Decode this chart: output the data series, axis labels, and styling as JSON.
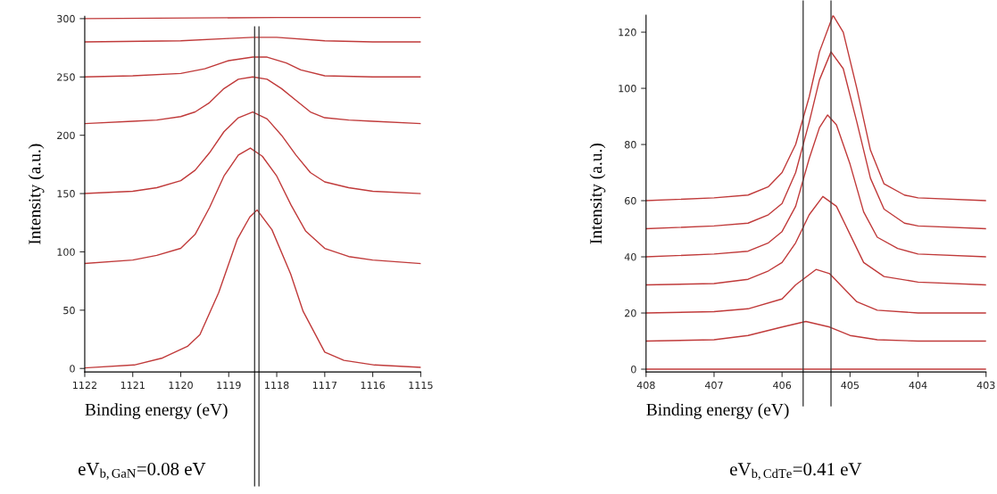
{
  "chart_data": [
    {
      "type": "line",
      "xlabel": "Binding energy (eV)",
      "ylabel": "Intensity (a.u.)",
      "xlim": [
        1122,
        1115
      ],
      "xticks": [
        1122,
        1121,
        1120,
        1119,
        1118,
        1117,
        1116,
        1115
      ],
      "ylim": [
        -3,
        302
      ],
      "yticks": [
        0,
        50,
        100,
        150,
        200,
        250,
        300
      ],
      "annotations": [
        "eV$_{b,GaN}$=0.08 eV"
      ],
      "ref_lines": [
        {
          "axis": "x",
          "value": 1118.46,
          "color": "#404040"
        },
        {
          "axis": "x",
          "value": 1118.37,
          "color": "#404040"
        }
      ],
      "series": [
        {
          "color": "#c03a3a",
          "x": [
            1122,
            1120.97,
            1120.38,
            1119.86,
            1119.6,
            1119.21,
            1118.82,
            1118.56,
            1118.41,
            1118.1,
            1117.71,
            1117.45,
            1117.0,
            1116.6,
            1115.96,
            1115
          ],
          "values": [
            0.5,
            3,
            9,
            19,
            29,
            65,
            111,
            130,
            136,
            119,
            81,
            49,
            14,
            7,
            3,
            1
          ]
        },
        {
          "color": "#c03a3a",
          "x": [
            1122,
            1121,
            1120.5,
            1120,
            1119.7,
            1119.4,
            1119.1,
            1118.8,
            1118.55,
            1118.3,
            1118,
            1117.7,
            1117.4,
            1117,
            1116.5,
            1116,
            1115
          ],
          "values": [
            90,
            93,
            97,
            103,
            115,
            138,
            165,
            183,
            189,
            182,
            165,
            140,
            118,
            103,
            96,
            93,
            90
          ]
        },
        {
          "color": "#c03a3a",
          "x": [
            1122,
            1121,
            1120.5,
            1120,
            1119.7,
            1119.4,
            1119.1,
            1118.8,
            1118.5,
            1118.2,
            1117.9,
            1117.6,
            1117.3,
            1117,
            1116.5,
            1116,
            1115
          ],
          "values": [
            150,
            152,
            155,
            161,
            170,
            185,
            203,
            215,
            220,
            214,
            200,
            183,
            168,
            160,
            155,
            152,
            150
          ]
        },
        {
          "color": "#c03a3a",
          "x": [
            1122,
            1121,
            1120.5,
            1120,
            1119.7,
            1119.4,
            1119.1,
            1118.8,
            1118.5,
            1118.2,
            1117.9,
            1117.6,
            1117.3,
            1117,
            1116.5,
            1116,
            1115
          ],
          "values": [
            210,
            212,
            213,
            216,
            220,
            228,
            240,
            248,
            250,
            248,
            240,
            230,
            220,
            215,
            213,
            212,
            210
          ]
        },
        {
          "color": "#c03a3a",
          "x": [
            1122,
            1121,
            1120,
            1119.5,
            1119,
            1118.5,
            1118.2,
            1117.8,
            1117.5,
            1117,
            1116,
            1115
          ],
          "values": [
            250,
            251,
            253,
            257,
            264,
            267,
            267,
            262,
            256,
            251,
            250,
            250
          ]
        },
        {
          "color": "#c03a3a",
          "x": [
            1122,
            1120,
            1119,
            1118.5,
            1118,
            1117,
            1116,
            1115
          ],
          "values": [
            280,
            281,
            283,
            284,
            284,
            281,
            280,
            280
          ]
        },
        {
          "color": "#c03a3a",
          "x": [
            1122,
            1118,
            1115
          ],
          "values": [
            300,
            301,
            301
          ]
        }
      ]
    },
    {
      "type": "line",
      "xlabel": "Binding energy (eV)",
      "ylabel": "Intensity (a.u.)",
      "xlim": [
        408,
        403
      ],
      "xticks": [
        408,
        407,
        406,
        405,
        404,
        403
      ],
      "ylim": [
        -1,
        126
      ],
      "yticks": [
        0,
        20,
        40,
        60,
        80,
        100,
        120
      ],
      "annotations": [
        "eV$_{b,CdTe}$=0.41 eV"
      ],
      "ref_lines": [
        {
          "axis": "x",
          "value": 405.69,
          "color": "#404040"
        },
        {
          "axis": "x",
          "value": 405.28,
          "color": "#404040"
        }
      ],
      "series": [
        {
          "color": "#c03a3a",
          "x": [
            408,
            403
          ],
          "values": [
            0,
            0
          ]
        },
        {
          "color": "#c03a3a",
          "x": [
            408,
            407,
            406.5,
            406,
            405.65,
            405.3,
            405,
            404.6,
            404,
            403
          ],
          "values": [
            10,
            10.5,
            12,
            15,
            17,
            15,
            12,
            10.5,
            10,
            10
          ]
        },
        {
          "color": "#c03a3a",
          "x": [
            408,
            407,
            406.5,
            406,
            405.8,
            405.5,
            405.3,
            405.1,
            404.9,
            404.6,
            404,
            403
          ],
          "values": [
            20,
            20.5,
            21.5,
            25,
            30,
            35.5,
            34,
            29,
            24,
            21,
            20,
            20
          ]
        },
        {
          "color": "#c03a3a",
          "x": [
            408,
            407,
            406.5,
            406.2,
            406,
            405.8,
            405.6,
            405.4,
            405.2,
            405,
            404.8,
            404.5,
            404,
            403
          ],
          "values": [
            30,
            30.5,
            32,
            35,
            38,
            45,
            55,
            61.5,
            58,
            48,
            38,
            33,
            31,
            30
          ]
        },
        {
          "color": "#c03a3a",
          "x": [
            408,
            407,
            406.5,
            406.2,
            406,
            405.8,
            405.6,
            405.45,
            405.33,
            405.2,
            405,
            404.8,
            404.6,
            404.3,
            404,
            403
          ],
          "values": [
            40,
            41,
            42,
            45,
            49,
            58,
            75,
            86,
            90.5,
            87,
            73,
            56,
            47,
            43,
            41,
            40
          ]
        },
        {
          "color": "#c03a3a",
          "x": [
            408,
            407,
            406.5,
            406.2,
            406,
            405.8,
            405.6,
            405.45,
            405.28,
            405.1,
            404.9,
            404.7,
            404.5,
            404.2,
            404,
            403
          ],
          "values": [
            50,
            51,
            52,
            55,
            59,
            70,
            88,
            103,
            113,
            107,
            88,
            68,
            57,
            52,
            51,
            50
          ]
        },
        {
          "color": "#c03a3a",
          "x": [
            408,
            407,
            406.5,
            406.2,
            406,
            405.8,
            405.6,
            405.45,
            405.25,
            405.1,
            404.9,
            404.7,
            404.5,
            404.2,
            404,
            403
          ],
          "values": [
            60,
            61,
            62,
            65,
            70,
            80,
            97,
            113,
            126,
            120,
            100,
            78,
            66,
            62,
            61,
            60
          ]
        }
      ]
    }
  ]
}
